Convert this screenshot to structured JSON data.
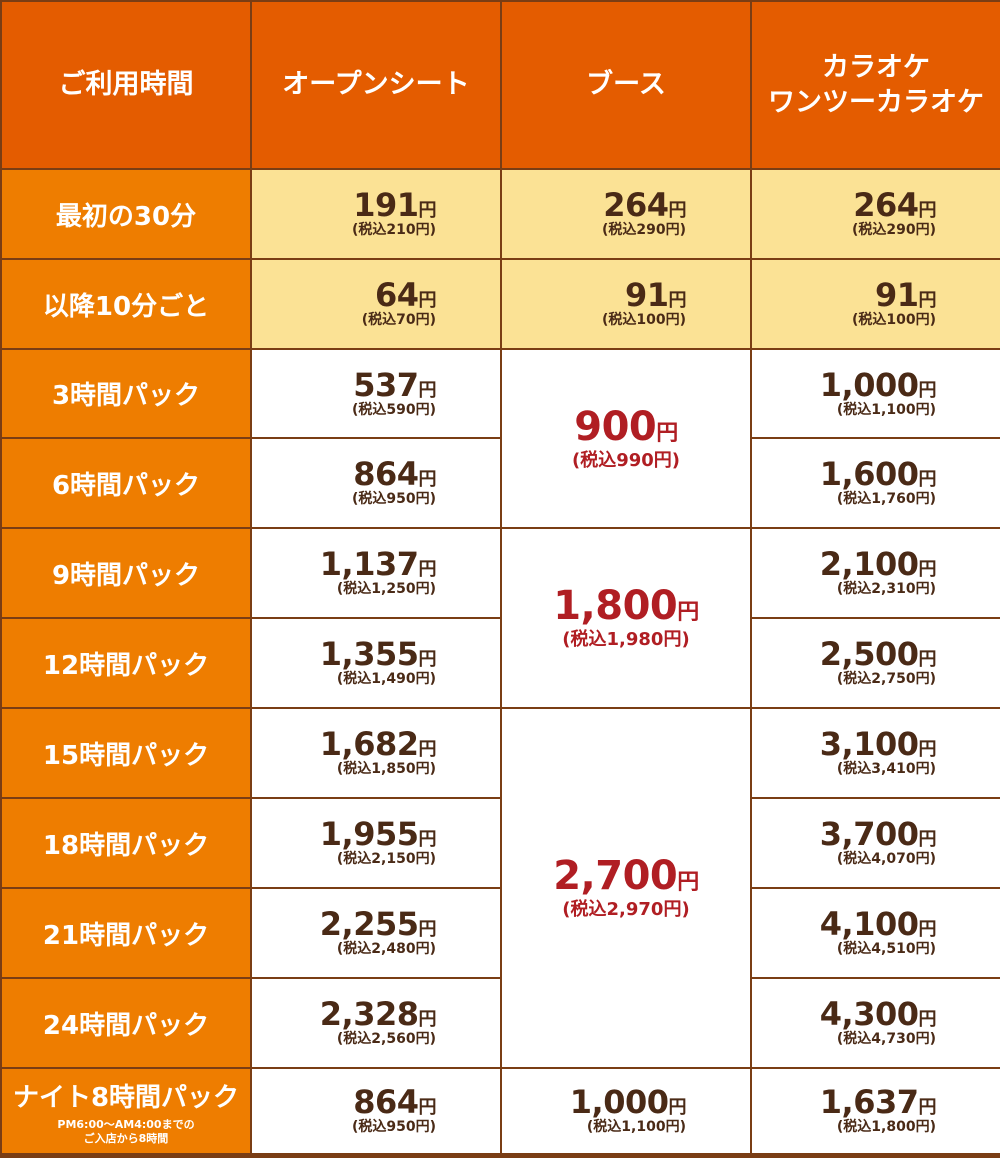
{
  "header": {
    "col_time": "ご利用時間",
    "col_open": "オープンシート",
    "col_booth": "ブース",
    "col_karaoke_line1": "カラオケ",
    "col_karaoke_line2": "ワンツーカラオケ"
  },
  "yen": "円",
  "rows": {
    "first30": {
      "label": "最初の30分",
      "open": {
        "price": "191",
        "tax": "(税込210円)"
      },
      "booth": {
        "price": "264",
        "tax": "(税込290円)"
      },
      "karaoke": {
        "price": "264",
        "tax": "(税込290円)"
      }
    },
    "per10": {
      "label": "以降10分ごと",
      "open": {
        "price": "64",
        "tax": "(税込70円)"
      },
      "booth": {
        "price": "91",
        "tax": "(税込100円)"
      },
      "karaoke": {
        "price": "91",
        "tax": "(税込100円)"
      }
    },
    "h3": {
      "label": "3時間パック",
      "open": {
        "price": "537",
        "tax": "(税込590円)"
      },
      "karaoke": {
        "price": "1,000",
        "tax": "(税込1,100円)"
      }
    },
    "h6": {
      "label": "6時間パック",
      "open": {
        "price": "864",
        "tax": "(税込950円)"
      },
      "karaoke": {
        "price": "1,600",
        "tax": "(税込1,760円)"
      }
    },
    "h9": {
      "label": "9時間パック",
      "open": {
        "price": "1,137",
        "tax": "(税込1,250円)"
      },
      "karaoke": {
        "price": "2,100",
        "tax": "(税込2,310円)"
      }
    },
    "h12": {
      "label": "12時間パック",
      "open": {
        "price": "1,355",
        "tax": "(税込1,490円)"
      },
      "karaoke": {
        "price": "2,500",
        "tax": "(税込2,750円)"
      }
    },
    "h15": {
      "label": "15時間パック",
      "open": {
        "price": "1,682",
        "tax": "(税込1,850円)"
      },
      "karaoke": {
        "price": "3,100",
        "tax": "(税込3,410円)"
      }
    },
    "h18": {
      "label": "18時間パック",
      "open": {
        "price": "1,955",
        "tax": "(税込2,150円)"
      },
      "karaoke": {
        "price": "3,700",
        "tax": "(税込4,070円)"
      }
    },
    "h21": {
      "label": "21時間パック",
      "open": {
        "price": "2,255",
        "tax": "(税込2,480円)"
      },
      "karaoke": {
        "price": "4,100",
        "tax": "(税込4,510円)"
      }
    },
    "h24": {
      "label": "24時間パック",
      "open": {
        "price": "2,328",
        "tax": "(税込2,560円)"
      },
      "karaoke": {
        "price": "4,300",
        "tax": "(税込4,730円)"
      }
    },
    "night": {
      "label": "ナイト8時間パック",
      "note_line1": "PM6:00〜AM4:00までの",
      "note_line2": "ご入店から8時間",
      "open": {
        "price": "864",
        "tax": "(税込950円)"
      },
      "booth": {
        "price": "1,000",
        "tax": "(税込1,100円)"
      },
      "karaoke": {
        "price": "1,637",
        "tax": "(税込1,800円)"
      }
    }
  },
  "booth_packs": {
    "h3_6": {
      "price": "900",
      "tax": "(税込990円)"
    },
    "h9_12": {
      "price": "1,800",
      "tax": "(税込1,980円)"
    },
    "h15_24": {
      "price": "2,700",
      "tax": "(税込2,970円)"
    }
  },
  "colors": {
    "header_bg": "#e45c00",
    "label_bg": "#ee7d00",
    "highlight_row_bg": "#fbe295",
    "price_text": "#4a2a16",
    "pack_price_text": "#b01e23",
    "border": "#7a3d14"
  }
}
